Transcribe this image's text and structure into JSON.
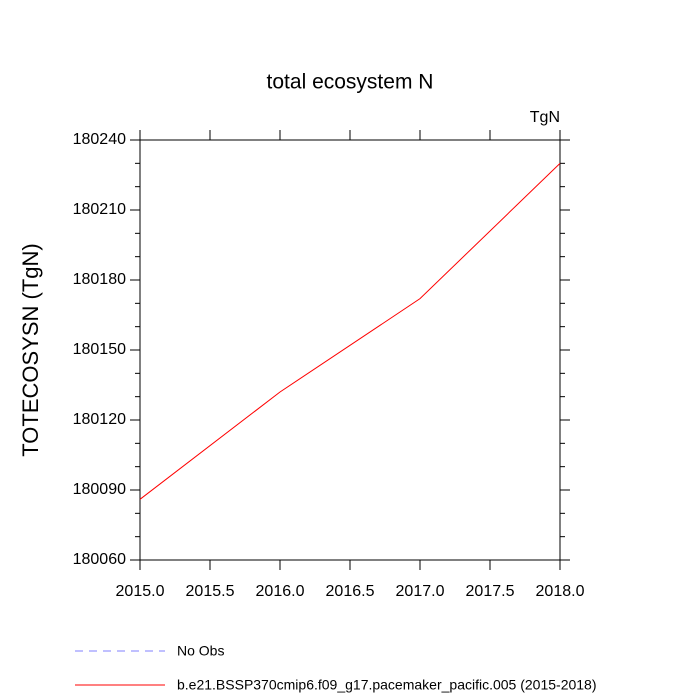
{
  "chart_data": {
    "type": "line",
    "title": "total ecosystem N",
    "units": "TgN",
    "ylabel": "TOTECOSYSN  (TgN)",
    "x": [
      2015,
      2016,
      2017,
      2018
    ],
    "series": [
      {
        "name": "No Obs",
        "color": "#8080ff",
        "dash": true,
        "values": [
          null,
          null,
          null,
          null
        ]
      },
      {
        "name": "b.e21.BSSP370cmip6.f09_g17.pacemaker_pacific.005 (2015-2018)",
        "color": "#ff0000",
        "dash": false,
        "values": [
          180086,
          180132,
          180172,
          180230
        ]
      }
    ],
    "xlim": [
      2015,
      2018
    ],
    "xticks": [
      {
        "value": 2015,
        "label": "2015.0"
      },
      {
        "value": 2015.5,
        "label": "2015.5"
      },
      {
        "value": 2016,
        "label": "2016.0"
      },
      {
        "value": 2016.5,
        "label": "2016.5"
      },
      {
        "value": 2017,
        "label": "2017.0"
      },
      {
        "value": 2017.5,
        "label": "2017.5"
      },
      {
        "value": 2018,
        "label": "2018.0"
      }
    ],
    "ylim": [
      180060,
      180240
    ],
    "yticks": [
      180060,
      180090,
      180120,
      180150,
      180180,
      180210,
      180240
    ],
    "yminorticks": [
      180070,
      180080,
      180100,
      180110,
      180130,
      180140,
      180160,
      180170,
      180190,
      180200,
      180220,
      180230
    ]
  }
}
